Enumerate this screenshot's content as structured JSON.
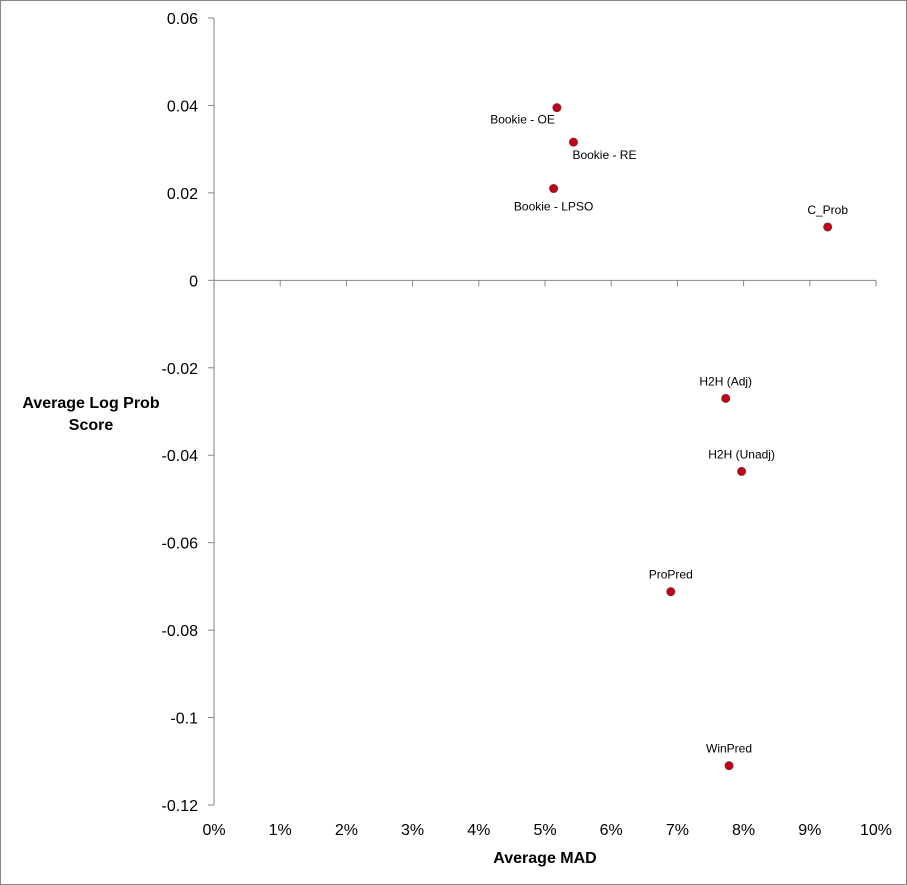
{
  "chart_data": {
    "type": "scatter",
    "title": "",
    "xlabel": "Average MAD",
    "ylabel_lines": [
      "Average Log Prob",
      "Score"
    ],
    "xlim": [
      0,
      0.1
    ],
    "ylim": [
      -0.12,
      0.06
    ],
    "x_ticks": [
      0,
      0.01,
      0.02,
      0.03,
      0.04,
      0.05,
      0.06,
      0.07,
      0.08,
      0.09,
      0.1
    ],
    "x_tick_labels": [
      "0%",
      "1%",
      "2%",
      "3%",
      "4%",
      "5%",
      "6%",
      "7%",
      "8%",
      "9%",
      "10%"
    ],
    "y_ticks": [
      0.06,
      0.04,
      0.02,
      0,
      -0.02,
      -0.04,
      -0.06,
      -0.08,
      -0.1,
      -0.12
    ],
    "y_tick_labels": [
      "0.06",
      "0.04",
      "0.02",
      "0",
      "-0.02",
      "-0.04",
      "-0.06",
      "-0.08",
      "-0.1",
      "-0.12"
    ],
    "grid": false,
    "legend": "none",
    "marker_color": "#c0001a",
    "marker_edge_color": "#8b2a2a",
    "points": [
      {
        "label": "Bookie - OE",
        "x": 0.0518,
        "y": 0.0395,
        "label_pos": "below-left"
      },
      {
        "label": "Bookie - RE",
        "x": 0.0543,
        "y": 0.0316,
        "label_pos": "below-right"
      },
      {
        "label": "Bookie - LPSO",
        "x": 0.0513,
        "y": 0.021,
        "label_pos": "below"
      },
      {
        "label": "C_Prob",
        "x": 0.0927,
        "y": 0.0122,
        "label_pos": "above"
      },
      {
        "label": "H2H (Adj)",
        "x": 0.0773,
        "y": -0.027,
        "label_pos": "above"
      },
      {
        "label": "H2H (Unadj)",
        "x": 0.0797,
        "y": -0.0437,
        "label_pos": "above"
      },
      {
        "label": "ProPred",
        "x": 0.069,
        "y": -0.0712,
        "label_pos": "above"
      },
      {
        "label": "WinPred",
        "x": 0.0778,
        "y": -0.111,
        "label_pos": "above"
      }
    ]
  }
}
